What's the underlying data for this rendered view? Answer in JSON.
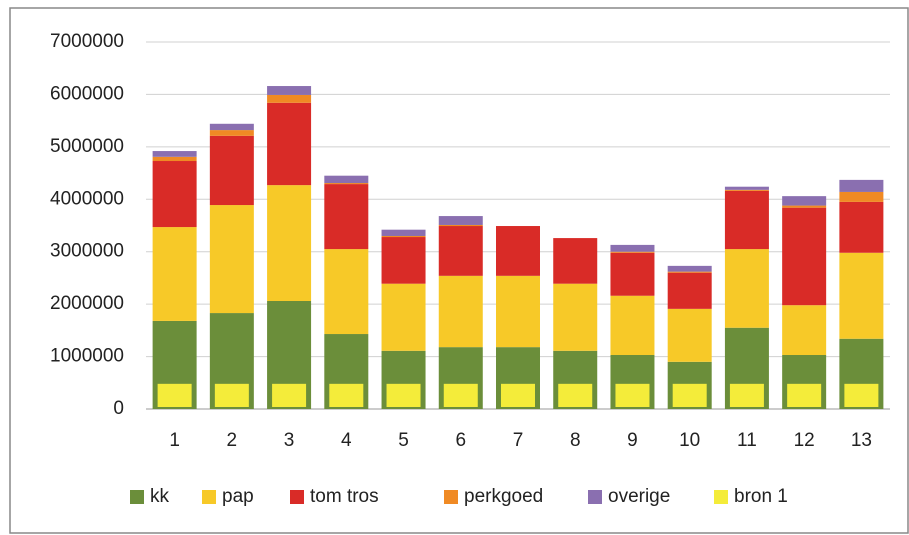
{
  "chart_data": {
    "type": "stacked_bar",
    "categories": [
      "1",
      "2",
      "3",
      "4",
      "5",
      "6",
      "7",
      "8",
      "9",
      "10",
      "11",
      "12",
      "13"
    ],
    "series": [
      {
        "name": "kk",
        "color": "#6b8e3a",
        "values": [
          1680000,
          1830000,
          2060000,
          1430000,
          1110000,
          1180000,
          1180000,
          1110000,
          1030000,
          900000,
          1550000,
          1030000,
          1340000
        ]
      },
      {
        "name": "pap",
        "color": "#f7c928",
        "values": [
          1790000,
          2060000,
          2210000,
          1620000,
          1280000,
          1360000,
          1360000,
          1280000,
          1130000,
          1010000,
          1500000,
          950000,
          1640000
        ]
      },
      {
        "name": "tom tros",
        "color": "#d92b27",
        "values": [
          1260000,
          1320000,
          1570000,
          1240000,
          890000,
          950000,
          950000,
          870000,
          820000,
          690000,
          1110000,
          1860000,
          970000
        ]
      },
      {
        "name": "perkgoed",
        "color": "#f08a24",
        "values": [
          80000,
          110000,
          150000,
          20000,
          20000,
          20000,
          0,
          0,
          20000,
          20000,
          20000,
          40000,
          190000
        ]
      },
      {
        "name": "overige",
        "color": "#8a6fb0",
        "values": [
          110000,
          120000,
          170000,
          140000,
          120000,
          170000,
          0,
          0,
          130000,
          110000,
          60000,
          180000,
          230000
        ]
      },
      {
        "name": "bron 1",
        "color": "#f4ec3a",
        "stacked": false,
        "values": [
          480000,
          480000,
          480000,
          480000,
          480000,
          480000,
          480000,
          480000,
          480000,
          480000,
          480000,
          480000,
          480000
        ]
      }
    ],
    "ylim": [
      0,
      7000000
    ],
    "yticks": [
      0,
      1000000,
      2000000,
      3000000,
      4000000,
      5000000,
      6000000,
      7000000
    ],
    "grid": true,
    "legend": "bottom"
  }
}
